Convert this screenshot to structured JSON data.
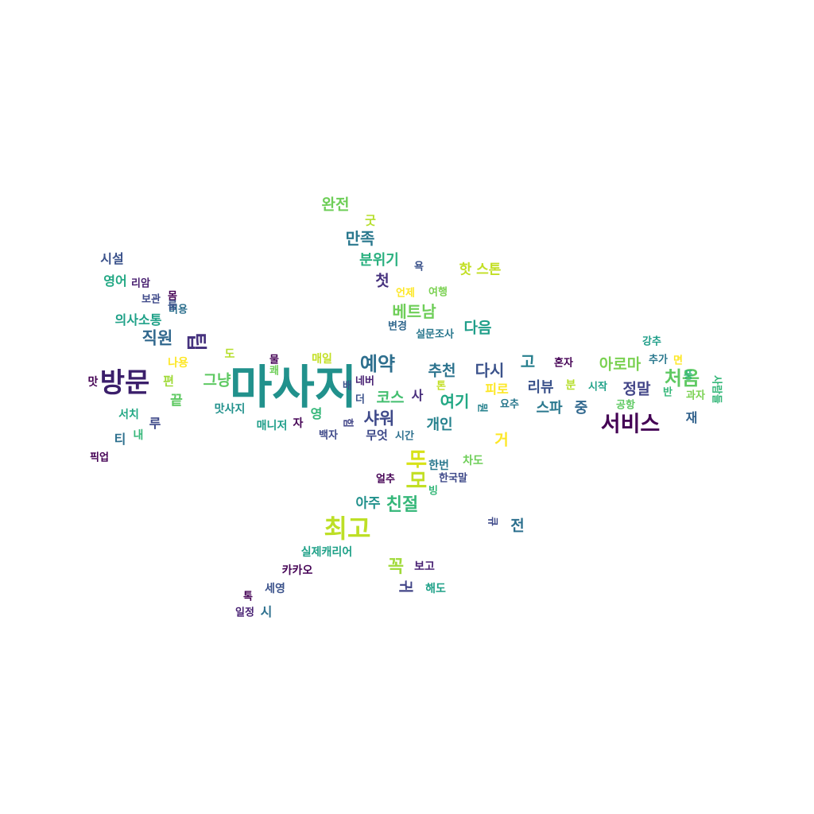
{
  "words": [
    {
      "text": "마사지",
      "color": "#21918c"
    },
    {
      "text": "방문",
      "color": "#3b1f6b"
    },
    {
      "text": "서비스",
      "color": "#440154"
    },
    {
      "text": "최고",
      "color": "#bddf26"
    },
    {
      "text": "처음",
      "color": "#5ec962"
    },
    {
      "text": "예약",
      "color": "#2e6f8e"
    },
    {
      "text": "친절",
      "color": "#35b779"
    },
    {
      "text": "직원",
      "color": "#31688e"
    },
    {
      "text": "샤워",
      "color": "#3e4989"
    },
    {
      "text": "만족",
      "color": "#2a788e"
    },
    {
      "text": "베트남",
      "color": "#6ece58"
    },
    {
      "text": "바",
      "color": "#d8e219"
    },
    {
      "text": "머",
      "color": "#c2df23"
    },
    {
      "text": "꼭",
      "color": "#a0da39"
    },
    {
      "text": "추천",
      "color": "#2c738e"
    },
    {
      "text": "다시",
      "color": "#3b528b"
    },
    {
      "text": "다음",
      "color": "#1f9e89"
    },
    {
      "text": "여기",
      "color": "#22a884"
    },
    {
      "text": "정말",
      "color": "#414487"
    },
    {
      "text": "아로마",
      "color": "#7ad151"
    },
    {
      "text": "그냥",
      "color": "#5ec962"
    },
    {
      "text": "완전",
      "color": "#6ece58"
    },
    {
      "text": "분위기",
      "color": "#2ab07f"
    },
    {
      "text": "코스",
      "color": "#44bf70"
    },
    {
      "text": "개인",
      "color": "#26828e"
    },
    {
      "text": "아주",
      "color": "#21918c"
    },
    {
      "text": "스파",
      "color": "#2a788e"
    },
    {
      "text": "리뷰",
      "color": "#3b528b"
    },
    {
      "text": "중",
      "color": "#31688e"
    },
    {
      "text": "고",
      "color": "#277f8e"
    },
    {
      "text": "전",
      "color": "#2d708e"
    },
    {
      "text": "첫",
      "color": "#46327e"
    },
    {
      "text": "시설",
      "color": "#3b528b"
    },
    {
      "text": "영어",
      "color": "#22a884"
    },
    {
      "text": "의사소통",
      "color": "#1fa188"
    },
    {
      "text": "거",
      "color": "#fde725"
    },
    {
      "text": "피로",
      "color": "#fde725"
    },
    {
      "text": "끝",
      "color": "#5ec962"
    },
    {
      "text": "맛",
      "color": "#440154"
    },
    {
      "text": "티",
      "color": "#2d708e"
    },
    {
      "text": "루",
      "color": "#3e4989"
    },
    {
      "text": "재",
      "color": "#33638d"
    },
    {
      "text": "팁",
      "color": "#46327e"
    },
    {
      "text": "핫 스톤",
      "color": "#c2df23"
    },
    {
      "text": "무엇",
      "color": "#3e4989"
    },
    {
      "text": "사",
      "color": "#472d7b"
    },
    {
      "text": "영",
      "color": "#35b779"
    },
    {
      "text": "편",
      "color": "#a0da39"
    },
    {
      "text": "굿",
      "color": "#b5de2b"
    },
    {
      "text": "카카오",
      "color": "#440154"
    },
    {
      "text": "실제캐리어",
      "color": "#1fa188"
    },
    {
      "text": "보고",
      "color": "#482173"
    },
    {
      "text": "해도",
      "color": "#1fa188"
    },
    {
      "text": "세영",
      "color": "#3b528b"
    },
    {
      "text": "시",
      "color": "#2d708e"
    },
    {
      "text": "일정",
      "color": "#482173"
    },
    {
      "text": "한번",
      "color": "#2a788e"
    },
    {
      "text": "차도",
      "color": "#6ece58"
    },
    {
      "text": "한국말",
      "color": "#3e4989"
    },
    {
      "text": "얼추",
      "color": "#440154"
    },
    {
      "text": "매일",
      "color": "#c2df23"
    },
    {
      "text": "매니저",
      "color": "#1f9e89"
    },
    {
      "text": "맛사지",
      "color": "#21918c"
    },
    {
      "text": "서치",
      "color": "#22a884"
    },
    {
      "text": "내",
      "color": "#35b779"
    },
    {
      "text": "픽업",
      "color": "#440154"
    },
    {
      "text": "나용",
      "color": "#fde725"
    },
    {
      "text": "도",
      "color": "#b5de2b"
    },
    {
      "text": "보관",
      "color": "#3e4989"
    },
    {
      "text": "비용",
      "color": "#2d708e"
    },
    {
      "text": "리암",
      "color": "#481f70"
    },
    {
      "text": "변경",
      "color": "#31688e"
    },
    {
      "text": "설문조사",
      "color": "#2a788e"
    },
    {
      "text": "언제",
      "color": "#fde725"
    },
    {
      "text": "여행",
      "color": "#7ad151"
    },
    {
      "text": "네버",
      "color": "#482173"
    },
    {
      "text": "더",
      "color": "#3b528b"
    },
    {
      "text": "백자",
      "color": "#3e4989"
    },
    {
      "text": "자",
      "color": "#440154"
    },
    {
      "text": "시간",
      "color": "#2d708e"
    },
    {
      "text": "톤",
      "color": "#c2df23"
    },
    {
      "text": "요추",
      "color": "#2a788e"
    },
    {
      "text": "혼자",
      "color": "#440154"
    },
    {
      "text": "분",
      "color": "#b5de2b"
    },
    {
      "text": "시작",
      "color": "#1fa188"
    },
    {
      "text": "공항",
      "color": "#5ec962"
    },
    {
      "text": "반",
      "color": "#35b779"
    },
    {
      "text": "과자",
      "color": "#7ad151"
    },
    {
      "text": "강추",
      "color": "#1f9e89"
    },
    {
      "text": "추가",
      "color": "#2a788e"
    },
    {
      "text": "면",
      "color": "#fde725"
    },
    {
      "text": "사람들",
      "color": "#35b779"
    },
    {
      "text": "몸",
      "color": "#440154"
    },
    {
      "text": "욕",
      "color": "#3b528b"
    },
    {
      "text": "힘",
      "color": "#414487"
    },
    {
      "text": "물",
      "color": "#440154"
    },
    {
      "text": "톡",
      "color": "#440154"
    },
    {
      "text": "빙",
      "color": "#35b779"
    },
    {
      "text": "쾌",
      "color": "#6ece58"
    },
    {
      "text": "큐",
      "color": "#3e4989"
    },
    {
      "text": "뭔",
      "color": "#26828e"
    },
    {
      "text": "배",
      "color": "#3b528b"
    },
    {
      "text": "귀",
      "color": "#414487"
    },
    {
      "text": "풍",
      "color": "#35b779"
    },
    {
      "text": "룸",
      "color": "#3b528b"
    }
  ]
}
